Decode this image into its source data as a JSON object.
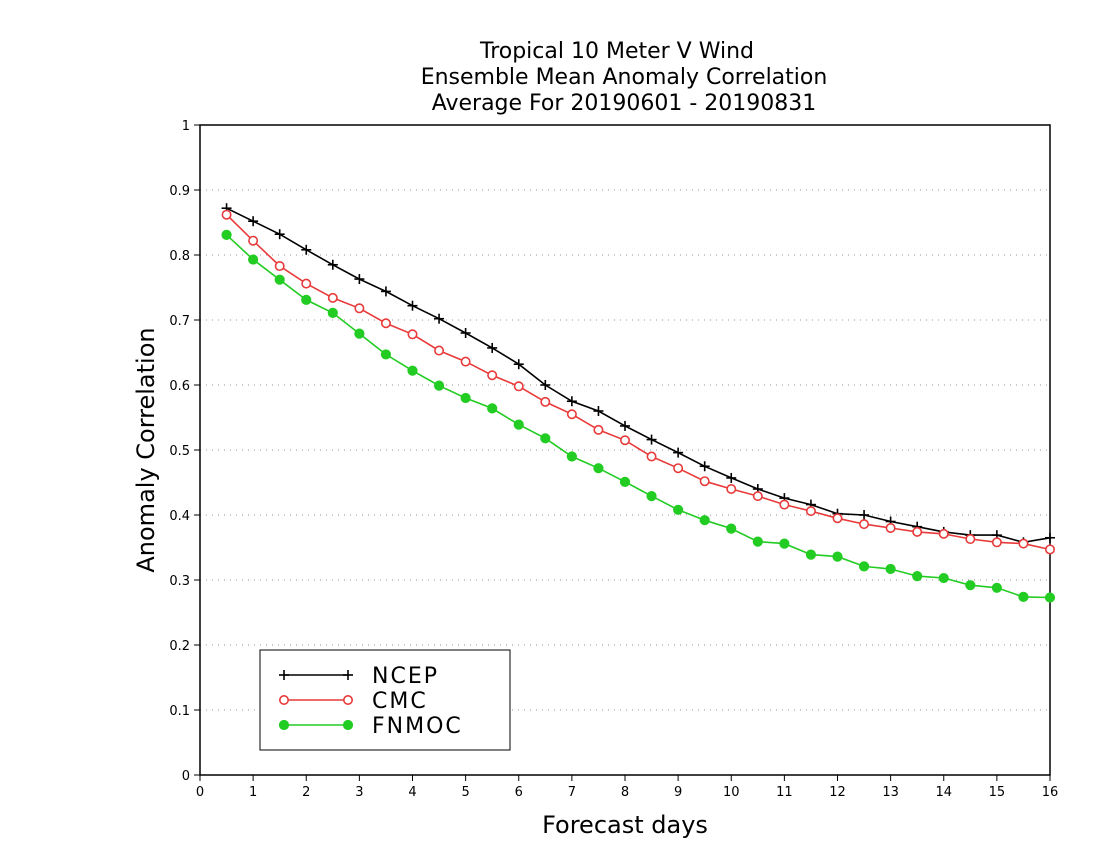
{
  "chart_data": {
    "type": "line",
    "title_lines": [
      "Tropical 10 Meter V Wind",
      "Ensemble Mean Anomaly Correlation",
      "Average For 20190601 - 20190831"
    ],
    "xlabel": "Forecast days",
    "ylabel": "Anomaly Correlation",
    "xlim": [
      0,
      16
    ],
    "ylim": [
      0,
      1
    ],
    "xticks": [
      0,
      1,
      2,
      3,
      4,
      5,
      6,
      7,
      8,
      9,
      10,
      11,
      12,
      13,
      14,
      15,
      16
    ],
    "xtick_labels": [
      "0",
      "1",
      "2",
      "3",
      "4",
      "5",
      "6",
      "7",
      "8",
      "9",
      "10",
      "11",
      "12",
      "13",
      "14",
      "15",
      "16"
    ],
    "yticks": [
      0,
      0.1,
      0.2,
      0.3,
      0.4,
      0.5,
      0.6,
      0.7,
      0.8,
      0.9,
      1
    ],
    "ytick_labels": [
      "0",
      "0.1",
      "0.2",
      "0.3",
      "0.4",
      "0.5",
      "0.6",
      "0.7",
      "0.8",
      "0.9",
      "1"
    ],
    "grid": "horizontal dotted",
    "legend_position": "bottom-left",
    "x": [
      0.5,
      1,
      1.5,
      2,
      2.5,
      3,
      3.5,
      4,
      4.5,
      5,
      5.5,
      6,
      6.5,
      7,
      7.5,
      8,
      8.5,
      9,
      9.5,
      10,
      10.5,
      11,
      11.5,
      12,
      12.5,
      13,
      13.5,
      14,
      14.5,
      15,
      15.5,
      16
    ],
    "series": [
      {
        "name": "NCEP",
        "color": "#000000",
        "marker": "plus",
        "values": [
          0.872,
          0.852,
          0.832,
          0.808,
          0.785,
          0.763,
          0.744,
          0.722,
          0.702,
          0.68,
          0.657,
          0.632,
          0.6,
          0.575,
          0.56,
          0.537,
          0.516,
          0.496,
          0.475,
          0.457,
          0.44,
          0.426,
          0.416,
          0.402,
          0.4,
          0.39,
          0.382,
          0.374,
          0.369,
          0.369,
          0.358,
          0.365
        ]
      },
      {
        "name": "CMC",
        "color": "#e83a3a",
        "marker": "open-circle",
        "values": [
          0.862,
          0.822,
          0.783,
          0.756,
          0.734,
          0.718,
          0.695,
          0.678,
          0.653,
          0.636,
          0.615,
          0.598,
          0.574,
          0.555,
          0.531,
          0.515,
          0.49,
          0.472,
          0.452,
          0.44,
          0.429,
          0.416,
          0.406,
          0.395,
          0.386,
          0.38,
          0.374,
          0.371,
          0.363,
          0.358,
          0.356,
          0.347
        ]
      },
      {
        "name": "FNMOC",
        "color": "#22cc22",
        "marker": "filled-circle",
        "values": [
          0.831,
          0.793,
          0.762,
          0.731,
          0.711,
          0.679,
          0.647,
          0.622,
          0.599,
          0.58,
          0.564,
          0.539,
          0.518,
          0.49,
          0.472,
          0.451,
          0.429,
          0.408,
          0.392,
          0.379,
          0.359,
          0.356,
          0.339,
          0.336,
          0.321,
          0.317,
          0.306,
          0.303,
          0.292,
          0.288,
          0.274,
          0.273
        ]
      }
    ]
  }
}
